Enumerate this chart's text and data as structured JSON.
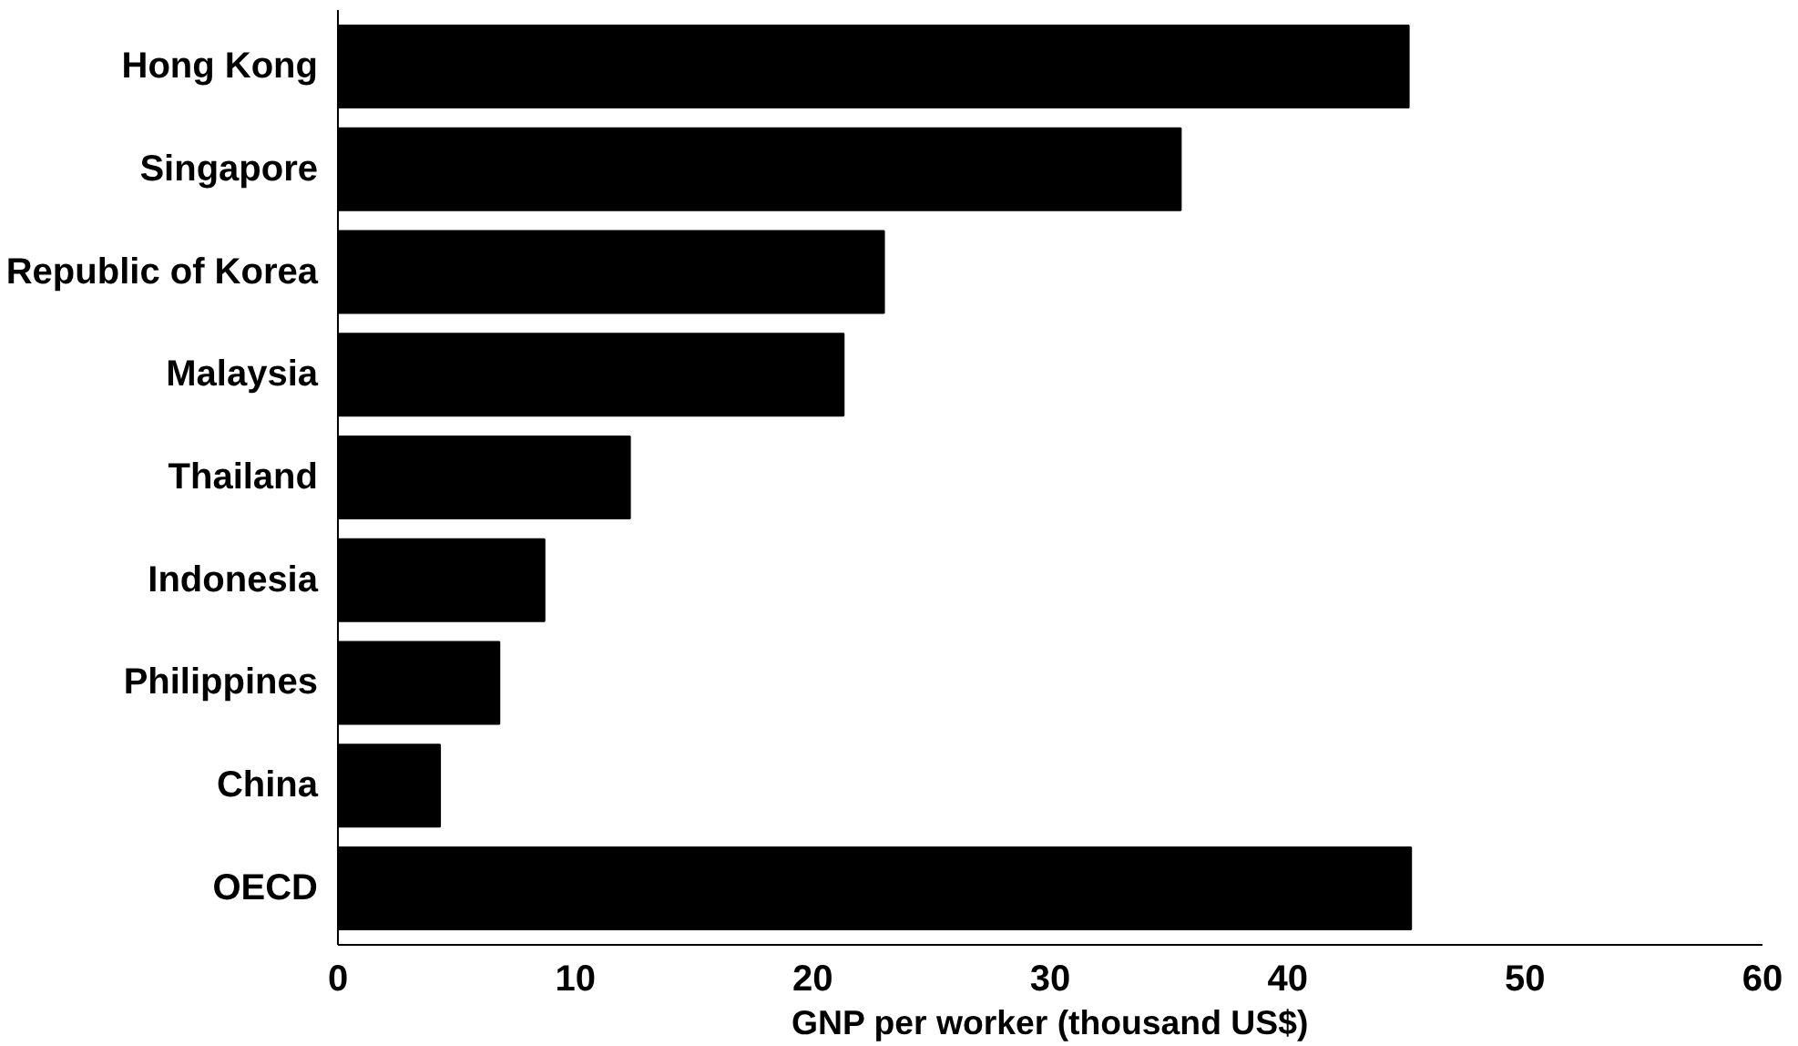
{
  "chart_data": {
    "type": "bar",
    "orientation": "horizontal",
    "xlabel": "GNP per worker (thousand US$)",
    "categories": [
      "Hong Kong",
      "Singapore",
      "Republic of Korea",
      "Malaysia",
      "Thailand",
      "Indonesia",
      "Philippines",
      "China",
      "OECD"
    ],
    "values": [
      45.1,
      35.5,
      23.0,
      21.3,
      12.3,
      8.7,
      6.8,
      4.3,
      45.2
    ],
    "color": "#000000",
    "xlim": [
      0,
      60
    ],
    "xticks": [
      0,
      10,
      20,
      30,
      40,
      50,
      60
    ],
    "grid": false
  }
}
